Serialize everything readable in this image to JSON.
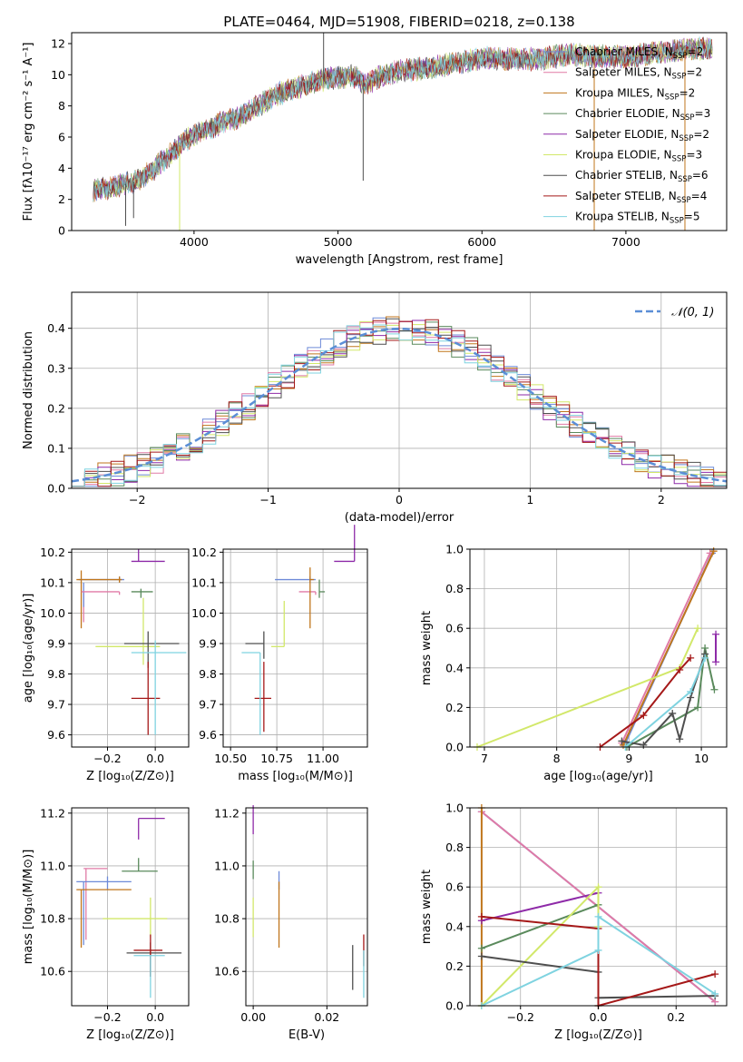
{
  "colors": {
    "chabrier_miles": "#6d8ad8",
    "salpeter_miles": "#e07aa6",
    "kroupa_miles": "#c0761c",
    "chabrier_elodie": "#5a8a5c",
    "salpeter_elodie": "#8e2aa8",
    "kroupa_elodie": "#d2e86a",
    "chabrier_stelib": "#4f4f4f",
    "salpeter_stelib": "#a51818",
    "kroupa_stelib": "#7fd3e0",
    "normal": "#5b8ed6",
    "grid": "#b0b0b0"
  },
  "chart_data": [
    {
      "id": "spectrum",
      "type": "line",
      "title": "PLATE=0464, MJD=51908, FIBERID=0218, z=0.138",
      "xlabel": "wavelength [Angstrom, rest frame]",
      "ylabel": "Flux [fλ10⁻¹⁷ erg cm⁻² s⁻¹ A⁻¹]",
      "xlim": [
        3150,
        7700
      ],
      "ylim": [
        0,
        12.7
      ],
      "xticks": [
        4000,
        5000,
        6000,
        7000
      ],
      "yticks": [
        0,
        2,
        4,
        6,
        8,
        10,
        12
      ],
      "grid": false,
      "legend_position": "right",
      "continuum": {
        "x": [
          3300,
          3450,
          3600,
          3700,
          3800,
          3900,
          4000,
          4100,
          4200,
          4300,
          4400,
          4500,
          4600,
          4700,
          4800,
          4900,
          5000,
          5100,
          5200,
          5300,
          5400,
          5600,
          5800,
          6000,
          6200,
          6400,
          6600,
          6800,
          7000,
          7200,
          7400,
          7600
        ],
        "y": [
          2.6,
          2.8,
          3.2,
          3.8,
          4.6,
          5.4,
          6.2,
          6.5,
          7.0,
          7.2,
          7.8,
          8.3,
          8.8,
          9.1,
          9.4,
          9.7,
          9.8,
          9.9,
          9.4,
          9.9,
          10.2,
          10.4,
          10.7,
          11.1,
          11.0,
          11.0,
          11.3,
          11.2,
          11.1,
          11.4,
          11.6,
          11.7
        ]
      },
      "series": [
        {
          "name": "Chabrier MILES, N",
          "sub": "SSP",
          "tail": "=2",
          "color_key": "chabrier_miles"
        },
        {
          "name": "Salpeter MILES, N",
          "sub": "SSP",
          "tail": "=2",
          "color_key": "salpeter_miles"
        },
        {
          "name": "Kroupa MILES, N",
          "sub": "SSP",
          "tail": "=2",
          "color_key": "kroupa_miles"
        },
        {
          "name": "Chabrier ELODIE, N",
          "sub": "SSP",
          "tail": "=3",
          "color_key": "chabrier_elodie"
        },
        {
          "name": "Salpeter ELODIE, N",
          "sub": "SSP",
          "tail": "=2",
          "color_key": "salpeter_elodie"
        },
        {
          "name": "Kroupa ELODIE, N",
          "sub": "SSP",
          "tail": "=3",
          "color_key": "kroupa_elodie"
        },
        {
          "name": "Chabrier STELIB, N",
          "sub": "SSP",
          "tail": "=6",
          "color_key": "chabrier_stelib"
        },
        {
          "name": "Salpeter STELIB, N",
          "sub": "SSP",
          "tail": "=4",
          "color_key": "salpeter_stelib"
        },
        {
          "name": "Kroupa STELIB, N",
          "sub": "SSP",
          "tail": "=5",
          "color_key": "kroupa_stelib"
        }
      ]
    },
    {
      "id": "residuals",
      "type": "histogram",
      "xlabel": "(data-model)/error",
      "ylabel": "Normed distribution",
      "xlim": [
        -2.5,
        2.5
      ],
      "ylim": [
        0,
        0.49
      ],
      "xticks": [
        -2,
        -1,
        0,
        1,
        2
      ],
      "yticks": [
        0.0,
        0.1,
        0.2,
        0.3,
        0.4
      ],
      "grid": true,
      "bin_width": 0.1,
      "legend_position": "top-right",
      "normal_label": "𝒩(0, 1)"
    },
    {
      "id": "age_vs_Z",
      "type": "scatter-errorbar",
      "xlabel": "Z [log₁₀(Z/Z⊙)]",
      "ylabel": "age  [log₁₀(age/yr)]",
      "xlim": [
        -0.35,
        0.14
      ],
      "ylim": [
        9.56,
        10.21
      ],
      "xticks": [
        -0.2,
        0.0
      ],
      "yticks": [
        9.6,
        9.7,
        9.8,
        9.9,
        10.0,
        10.1,
        10.2
      ],
      "grid": true,
      "points": [
        {
          "x": -0.15,
          "y": 10.11,
          "xerr": [
            0.17,
            0.02
          ],
          "yerr": [
            0.01,
            0.01
          ],
          "c": "chabrier_miles"
        },
        {
          "x": -0.15,
          "y": 10.07,
          "xerr": [
            0.16,
            0.0
          ],
          "yerr": [
            0.01,
            0.0
          ],
          "c": "salpeter_miles"
        },
        {
          "x": -0.15,
          "y": 10.11,
          "xerr": [
            0.18,
            0.01
          ],
          "yerr": [
            0.01,
            0.01
          ],
          "c": "kroupa_miles"
        },
        {
          "x": -0.06,
          "y": 10.07,
          "xerr": [
            0.04,
            0.05
          ],
          "yerr": [
            0.02,
            0.01
          ],
          "c": "chabrier_elodie"
        },
        {
          "x": -0.07,
          "y": 10.17,
          "xerr": [
            0.03,
            0.11
          ],
          "yerr": [
            0.0,
            0.04
          ],
          "c": "salpeter_elodie"
        },
        {
          "x": -0.05,
          "y": 9.89,
          "xerr": [
            0.2,
            0.07
          ],
          "yerr": [
            0.06,
            0.16
          ],
          "c": "kroupa_elodie"
        },
        {
          "x": -0.03,
          "y": 9.9,
          "xerr": [
            0.1,
            0.13
          ],
          "yerr": [
            0.08,
            0.04
          ],
          "c": "chabrier_stelib"
        },
        {
          "x": -0.03,
          "y": 9.72,
          "xerr": [
            0.07,
            0.05
          ],
          "yerr": [
            0.12,
            0.12
          ],
          "c": "salpeter_stelib"
        },
        {
          "x": 0.0,
          "y": 9.87,
          "xerr": [
            0.1,
            0.13
          ],
          "yerr": [
            0.27,
            0.04
          ],
          "c": "kroupa_stelib"
        }
      ],
      "pins": [
        {
          "x": -0.31,
          "y": 10.11,
          "yerr": [
            0.16,
            0.03
          ],
          "c": "kroupa_miles"
        },
        {
          "x": -0.3,
          "y": 10.07,
          "yerr": [
            0.1,
            0.0
          ],
          "c": "salpeter_miles"
        },
        {
          "x": -0.3,
          "y": 10.1,
          "yerr": [
            0.08,
            0.0
          ],
          "c": "chabrier_miles"
        }
      ]
    },
    {
      "id": "age_vs_mass",
      "type": "scatter-errorbar",
      "xlabel": "mass [log₁₀(M/M⊙)]",
      "ylabel": "",
      "xlim": [
        10.46,
        11.24
      ],
      "ylim": [
        9.56,
        10.21
      ],
      "xticks": [
        10.5,
        10.75,
        11.0
      ],
      "yticks": [
        9.6,
        9.7,
        9.8,
        9.9,
        10.0,
        10.1,
        10.2
      ],
      "grid": true,
      "points": [
        {
          "x": 10.93,
          "y": 10.11,
          "xerr": [
            0.19,
            0.03
          ],
          "yerr": [
            0.01,
            0.01
          ],
          "c": "chabrier_miles"
        },
        {
          "x": 10.96,
          "y": 10.07,
          "xerr": [
            0.09,
            0.0
          ],
          "yerr": [
            0.01,
            0.0
          ],
          "c": "salpeter_miles"
        },
        {
          "x": 10.93,
          "y": 10.11,
          "xerr": [
            0.0,
            0.02
          ],
          "yerr": [
            0.16,
            0.04
          ],
          "c": "kroupa_miles"
        },
        {
          "x": 10.98,
          "y": 10.07,
          "xerr": [
            0.0,
            0.03
          ],
          "yerr": [
            0.02,
            0.04
          ],
          "c": "chabrier_elodie"
        },
        {
          "x": 11.17,
          "y": 10.17,
          "xerr": [
            0.11,
            0.0
          ],
          "yerr": [
            0.0,
            0.12
          ],
          "c": "salpeter_elodie"
        },
        {
          "x": 10.79,
          "y": 9.89,
          "xerr": [
            0.07,
            0.0
          ],
          "yerr": [
            0.0,
            0.15
          ],
          "c": "kroupa_elodie"
        },
        {
          "x": 10.68,
          "y": 9.9,
          "xerr": [
            0.1,
            0.0
          ],
          "yerr": [
            0.05,
            0.04
          ],
          "c": "chabrier_stelib"
        },
        {
          "x": 10.68,
          "y": 9.72,
          "xerr": [
            0.05,
            0.04
          ],
          "yerr": [
            0.11,
            0.12
          ],
          "c": "salpeter_stelib"
        },
        {
          "x": 10.66,
          "y": 9.87,
          "xerr": [
            0.1,
            0.0
          ],
          "yerr": [
            0.27,
            0.0
          ],
          "c": "kroupa_stelib"
        }
      ],
      "pins": []
    },
    {
      "id": "weight_vs_age",
      "type": "line",
      "xlabel": "age  [log₁₀(age/yr)]",
      "ylabel": "mass weight",
      "xlim": [
        6.8,
        10.35
      ],
      "ylim": [
        0,
        1
      ],
      "xticks": [
        7,
        8,
        9,
        10
      ],
      "yticks": [
        0.0,
        0.2,
        0.4,
        0.6,
        0.8,
        1.0
      ],
      "grid": true,
      "series": [
        {
          "c": "chabrier_miles",
          "x": [
            8.95,
            10.15
          ],
          "y": [
            0.02,
            0.98
          ]
        },
        {
          "c": "salpeter_miles",
          "x": [
            8.9,
            10.12
          ],
          "y": [
            0.02,
            0.98
          ]
        },
        {
          "c": "kroupa_miles",
          "x": [
            8.92,
            10.17
          ],
          "y": [
            0.01,
            0.99
          ]
        },
        {
          "c": "chabrier_elodie",
          "x": [
            8.97,
            9.95,
            10.05,
            10.18
          ],
          "y": [
            0.0,
            0.2,
            0.5,
            0.29
          ]
        },
        {
          "c": "salpeter_elodie",
          "x": [
            10.2,
            10.2
          ],
          "y": [
            0.43,
            0.57
          ]
        },
        {
          "c": "kroupa_elodie",
          "x": [
            6.9,
            9.7,
            9.95
          ],
          "y": [
            0.0,
            0.4,
            0.6
          ]
        },
        {
          "c": "chabrier_stelib",
          "x": [
            8.9,
            9.2,
            9.6,
            9.7,
            9.85,
            10.05
          ],
          "y": [
            0.03,
            0.01,
            0.17,
            0.04,
            0.25,
            0.47
          ]
        },
        {
          "c": "salpeter_stelib",
          "x": [
            8.6,
            9.2,
            9.7,
            9.85
          ],
          "y": [
            0.0,
            0.16,
            0.39,
            0.45
          ]
        },
        {
          "c": "kroupa_stelib",
          "x": [
            8.95,
            9.85,
            10.05
          ],
          "y": [
            0.0,
            0.28,
            0.45
          ]
        }
      ]
    },
    {
      "id": "mass_vs_Z",
      "type": "scatter-errorbar",
      "xlabel": "Z [log₁₀(Z/Z⊙)]",
      "ylabel": "mass [log₁₀(M/M⊙)]",
      "xlim": [
        -0.35,
        0.14
      ],
      "ylim": [
        10.47,
        11.22
      ],
      "xticks": [
        -0.2,
        0.0
      ],
      "yticks": [
        10.6,
        10.8,
        11.0,
        11.2
      ],
      "grid": true,
      "points": [
        {
          "x": -0.2,
          "y": 10.94,
          "xerr": [
            0.13,
            0.1
          ],
          "yerr": [
            0.03,
            0.02
          ],
          "c": "chabrier_miles"
        },
        {
          "x": -0.2,
          "y": 10.99,
          "xerr": [
            0.1,
            0.0
          ],
          "yerr": [
            0.0,
            0.0
          ],
          "c": "salpeter_miles"
        },
        {
          "x": -0.2,
          "y": 10.91,
          "xerr": [
            0.13,
            0.1
          ],
          "yerr": [
            0.0,
            0.0
          ],
          "c": "kroupa_miles"
        },
        {
          "x": -0.07,
          "y": 10.98,
          "xerr": [
            0.07,
            0.08
          ],
          "yerr": [
            0.0,
            0.05
          ],
          "c": "chabrier_elodie"
        },
        {
          "x": -0.07,
          "y": 11.18,
          "xerr": [
            0.0,
            0.11
          ],
          "yerr": [
            0.08,
            0.0
          ],
          "c": "salpeter_elodie"
        },
        {
          "x": -0.02,
          "y": 10.8,
          "xerr": [
            0.2,
            0.07
          ],
          "yerr": [
            0.07,
            0.08
          ],
          "c": "kroupa_elodie"
        },
        {
          "x": -0.02,
          "y": 10.67,
          "xerr": [
            0.1,
            0.13
          ],
          "yerr": [
            0.09,
            0.04
          ],
          "c": "chabrier_stelib"
        },
        {
          "x": -0.02,
          "y": 10.68,
          "xerr": [
            0.07,
            0.05
          ],
          "yerr": [
            0.1,
            0.06
          ],
          "c": "salpeter_stelib"
        },
        {
          "x": -0.02,
          "y": 10.66,
          "xerr": [
            0.07,
            0.06
          ],
          "yerr": [
            0.16,
            0.0
          ],
          "c": "kroupa_stelib"
        }
      ],
      "pins": [
        {
          "x": -0.3,
          "y": 10.94,
          "yerr": [
            0.24,
            0.0
          ],
          "c": "chabrier_miles"
        },
        {
          "x": -0.29,
          "y": 10.99,
          "yerr": [
            0.27,
            0.0
          ],
          "c": "salpeter_miles"
        },
        {
          "x": -0.31,
          "y": 10.91,
          "yerr": [
            0.22,
            0.0
          ],
          "c": "kroupa_miles"
        }
      ]
    },
    {
      "id": "mass_vs_EBV",
      "type": "scatter-errorbar",
      "xlabel": "E(B-V)",
      "ylabel": "",
      "xlim": [
        -0.002,
        0.031
      ],
      "ylim": [
        10.47,
        11.22
      ],
      "xticks": [
        0.0,
        0.02
      ],
      "yticks": [
        10.6,
        10.8,
        11.0,
        11.2
      ],
      "grid": true,
      "points": [
        {
          "x": 0.0,
          "y": 11.17,
          "xerr": [
            0,
            0
          ],
          "yerr": [
            0.05,
            0.06
          ],
          "c": "salpeter_elodie"
        },
        {
          "x": 0.0,
          "y": 10.98,
          "xerr": [
            0,
            0
          ],
          "yerr": [
            0.03,
            0.04
          ],
          "c": "chabrier_elodie"
        },
        {
          "x": 0.0,
          "y": 10.8,
          "xerr": [
            0,
            0
          ],
          "yerr": [
            0.07,
            0.08
          ],
          "c": "kroupa_elodie"
        },
        {
          "x": 0.007,
          "y": 10.94,
          "xerr": [
            0,
            0
          ],
          "yerr": [
            0.03,
            0.04
          ],
          "c": "chabrier_miles"
        },
        {
          "x": 0.007,
          "y": 10.82,
          "xerr": [
            0,
            0
          ],
          "yerr": [
            0.13,
            0.12
          ],
          "c": "kroupa_miles"
        },
        {
          "x": 0.027,
          "y": 10.61,
          "xerr": [
            0,
            0
          ],
          "yerr": [
            0.08,
            0.09
          ],
          "c": "chabrier_stelib"
        },
        {
          "x": 0.03,
          "y": 10.67,
          "xerr": [
            0,
            0
          ],
          "yerr": [
            0.05,
            0.07
          ],
          "c": "salpeter_stelib"
        },
        {
          "x": 0.03,
          "y": 10.58,
          "xerr": [
            0,
            0
          ],
          "yerr": [
            0.08,
            0.1
          ],
          "c": "kroupa_stelib"
        }
      ],
      "pins": []
    },
    {
      "id": "weight_vs_Z",
      "type": "line",
      "xlabel": "Z [log₁₀(Z/Z⊙)]",
      "ylabel": "mass weight",
      "xlim": [
        -0.33,
        0.33
      ],
      "ylim": [
        0,
        1
      ],
      "xticks": [
        -0.2,
        0.0,
        0.2
      ],
      "yticks": [
        0.0,
        0.2,
        0.4,
        0.6,
        0.8,
        1.0
      ],
      "grid": true,
      "series": [
        {
          "c": "chabrier_miles",
          "x": [
            -0.3,
            0.3
          ],
          "y": [
            0.98,
            0.02
          ]
        },
        {
          "c": "salpeter_miles",
          "x": [
            -0.3,
            0.3
          ],
          "y": [
            0.98,
            0.02
          ]
        },
        {
          "c": "kroupa_miles",
          "x": [
            -0.3,
            -0.3
          ],
          "y": [
            1.0,
            0.0
          ]
        },
        {
          "c": "chabrier_elodie",
          "x": [
            -0.3,
            0.0,
            0.0
          ],
          "y": [
            0.29,
            0.51,
            0.0
          ]
        },
        {
          "c": "salpeter_elodie",
          "x": [
            -0.3,
            0.0
          ],
          "y": [
            0.43,
            0.57
          ]
        },
        {
          "c": "kroupa_elodie",
          "x": [
            -0.3,
            0.0,
            0.0
          ],
          "y": [
            0.0,
            0.6,
            0.4
          ]
        },
        {
          "c": "chabrier_stelib",
          "x": [
            -0.3,
            0.0,
            0.0,
            0.3
          ],
          "y": [
            0.25,
            0.17,
            0.04,
            0.05
          ]
        },
        {
          "c": "salpeter_stelib",
          "x": [
            -0.3,
            0.0,
            0.0,
            0.3
          ],
          "y": [
            0.45,
            0.39,
            0.0,
            0.16
          ]
        },
        {
          "c": "kroupa_stelib",
          "x": [
            -0.3,
            0.0,
            0.0,
            0.3
          ],
          "y": [
            0.0,
            0.28,
            0.45,
            0.06
          ]
        }
      ]
    }
  ]
}
